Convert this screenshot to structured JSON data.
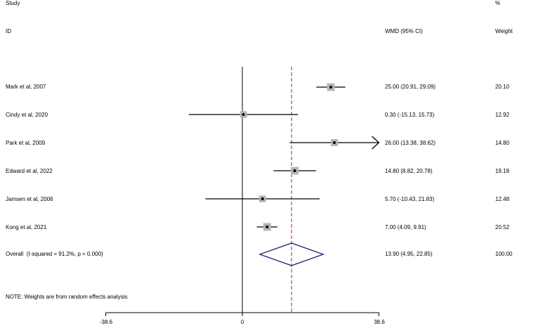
{
  "headers": {
    "study": "Study",
    "id": "ID",
    "percent": "%",
    "effect": "WMD (95% CI)",
    "weight": "Weight"
  },
  "note": "NOTE: Weights are from random effects analysis",
  "colors": {
    "line": "#000000",
    "box": "#b4b4b4",
    "diamond": "#1a237e",
    "ref_line": "#b22222"
  },
  "chart_data": {
    "type": "forest",
    "xaxis": {
      "ticks": [
        -38.6,
        0,
        38.6
      ],
      "tick_labels": [
        "-38.6",
        "0",
        "38.6"
      ],
      "range": [
        -38.6,
        38.6
      ]
    },
    "null_line": 0,
    "overall_reference_line": 13.9,
    "studies": [
      {
        "label": "Mark et al, 2007",
        "estimate": 25.0,
        "lower": 20.91,
        "upper": 29.09,
        "ci_text": "25.00 (20.91, 29.09)",
        "weight": "20.10",
        "weight_value": 20.1
      },
      {
        "label": "Cindy et al, 2020",
        "estimate": 0.3,
        "lower": -15.13,
        "upper": 15.73,
        "ci_text": "0.30 (-15.13, 15.73)",
        "weight": "12.92",
        "weight_value": 12.92
      },
      {
        "label": "Park et al, 2009",
        "estimate": 26.0,
        "lower": 13.38,
        "upper": 38.62,
        "ci_text": "26.00 (13.38, 38.62)",
        "weight": "14.80",
        "weight_value": 14.8,
        "arrow_right": true
      },
      {
        "label": "Edward et al, 2022",
        "estimate": 14.8,
        "lower": 8.82,
        "upper": 20.78,
        "ci_text": "14.80 (8.82, 20.78)",
        "weight": "19.18",
        "weight_value": 19.18
      },
      {
        "label": "Jamsen et al, 2006",
        "estimate": 5.7,
        "lower": -10.43,
        "upper": 21.83,
        "ci_text": "5.70 (-10.43, 21.83)",
        "weight": "12.48",
        "weight_value": 12.48
      },
      {
        "label": "Kong et al, 2021",
        "estimate": 7.0,
        "lower": 4.09,
        "upper": 9.91,
        "ci_text": "7.00 (4.09, 9.91)",
        "weight": "20.52",
        "weight_value": 20.52
      }
    ],
    "overall": {
      "label": "Overall  (I-squared = 91.2%, p = 0.000)",
      "estimate": 13.9,
      "lower": 4.95,
      "upper": 22.85,
      "ci_text": "13.90 (4.95, 22.85)",
      "weight": "100.00"
    }
  }
}
